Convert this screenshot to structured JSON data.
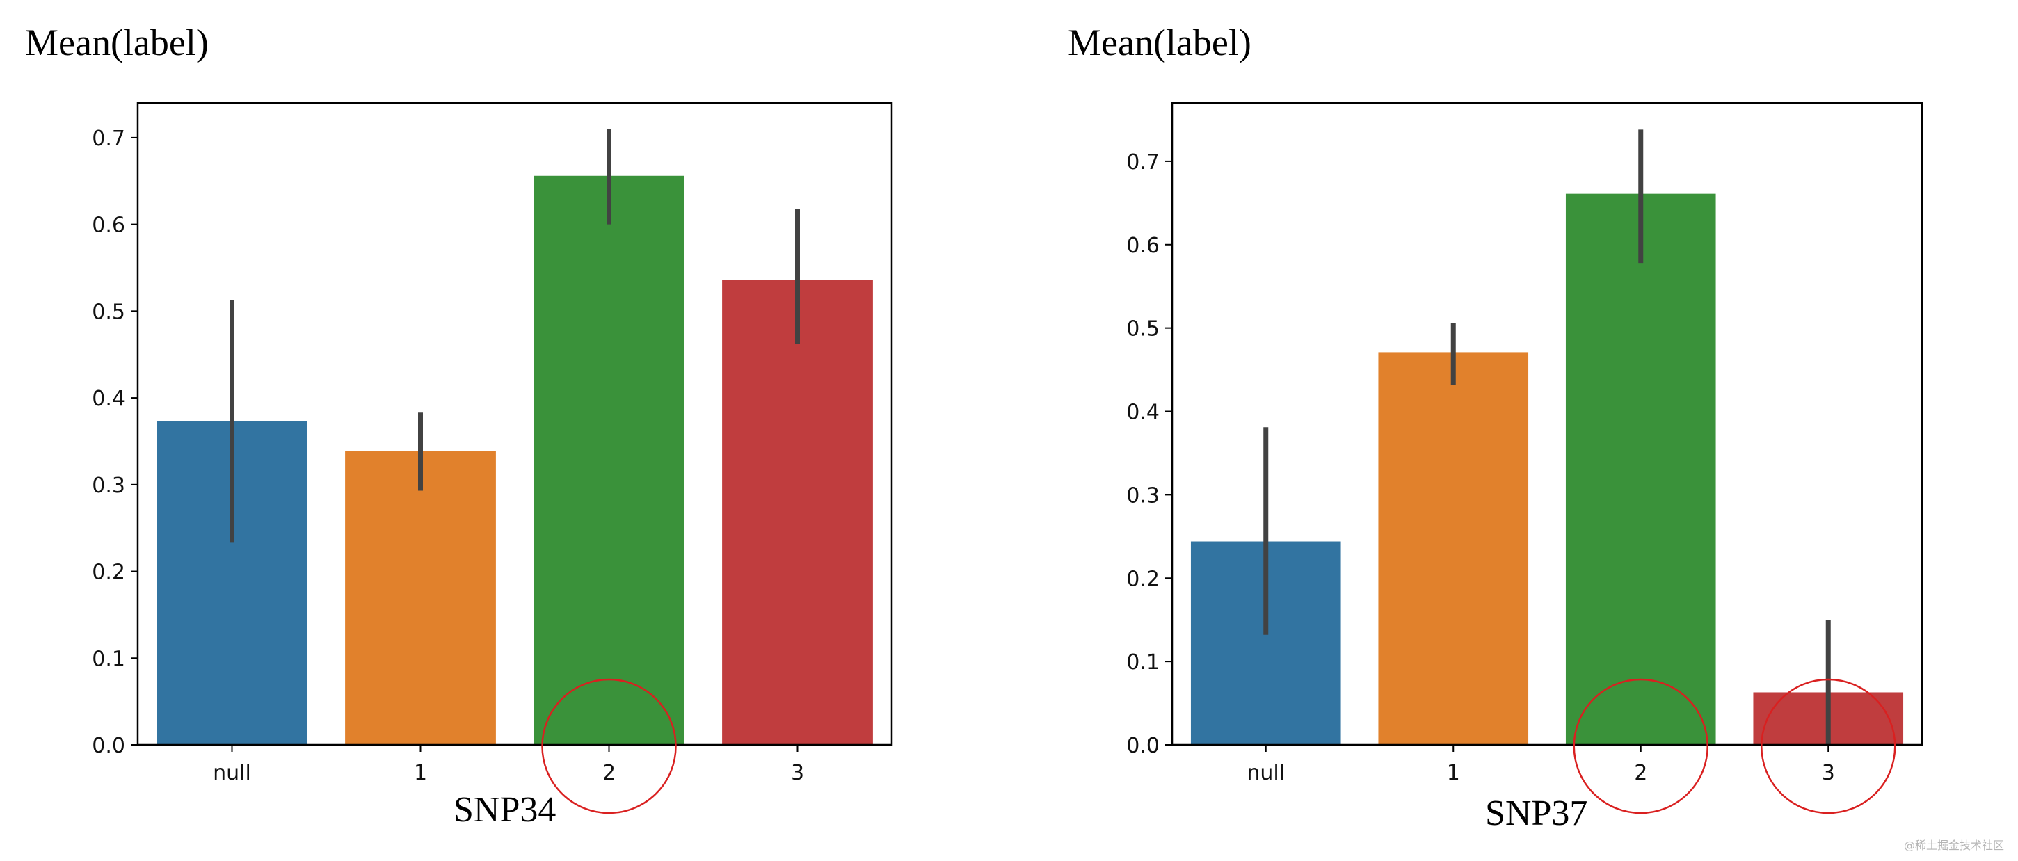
{
  "charts_meta": {
    "watermark": "@稀土掘金技术社区"
  },
  "chart_data": [
    {
      "type": "bar",
      "title": "SNP34",
      "ylabel": "Mean(label)",
      "xlabel": "",
      "categories": [
        "null",
        "1",
        "2",
        "3"
      ],
      "values": [
        0.373,
        0.339,
        0.656,
        0.536
      ],
      "error_low": [
        0.233,
        0.293,
        0.6,
        0.462
      ],
      "error_high": [
        0.513,
        0.383,
        0.71,
        0.618
      ],
      "colors": [
        "#3274a1",
        "#e1812c",
        "#3a923a",
        "#c03d3e"
      ],
      "ylim": [
        0,
        0.74
      ],
      "yticks": [
        0.0,
        0.1,
        0.2,
        0.3,
        0.4,
        0.5,
        0.6,
        0.7
      ],
      "highlighted_categories": [
        "2"
      ],
      "highlight_color": "#d92020"
    },
    {
      "type": "bar",
      "title": "SNP37",
      "ylabel": "Mean(label)",
      "xlabel": "",
      "categories": [
        "null",
        "1",
        "2",
        "3"
      ],
      "values": [
        0.244,
        0.471,
        0.661,
        0.063
      ],
      "error_low": [
        0.132,
        0.432,
        0.578,
        0.0
      ],
      "error_high": [
        0.381,
        0.506,
        0.738,
        0.15
      ],
      "colors": [
        "#3274a1",
        "#e1812c",
        "#3a923a",
        "#c03d3e"
      ],
      "ylim": [
        0,
        0.77
      ],
      "yticks": [
        0.0,
        0.1,
        0.2,
        0.3,
        0.4,
        0.5,
        0.6,
        0.7
      ],
      "highlighted_categories": [
        "2",
        "3"
      ],
      "highlight_color": "#d92020"
    }
  ]
}
